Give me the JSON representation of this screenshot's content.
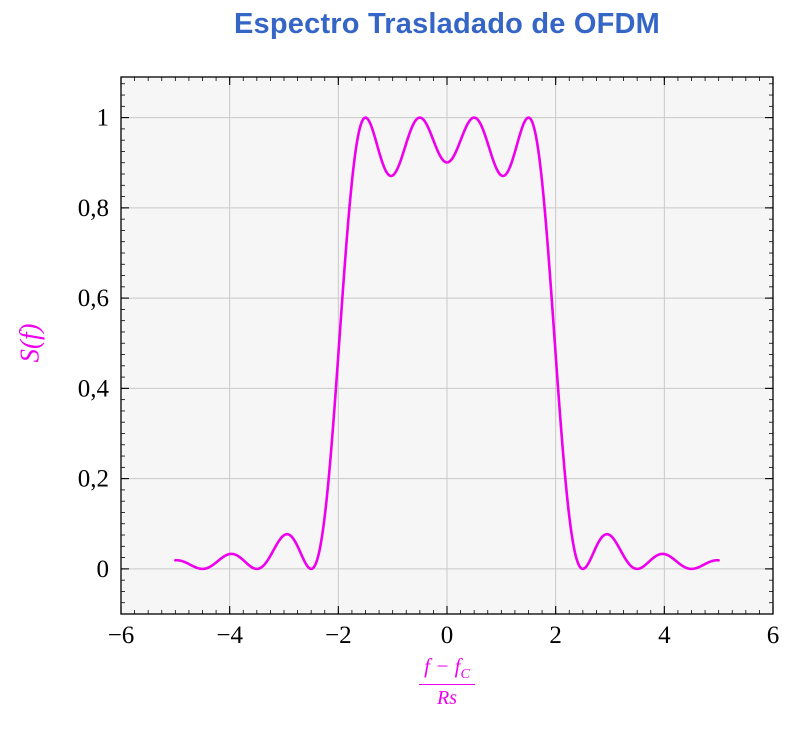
{
  "chart": {
    "title": "Espectro Trasladado de OFDM",
    "title_color": "#3565C6",
    "ylabel": "S(f)",
    "xlabel_parts": {
      "num_main": "f − f",
      "num_sub": "C",
      "den": "Rs"
    },
    "accent_color": "#EE00EE"
  },
  "chart_data": {
    "type": "line",
    "title": "Espectro Trasladado de OFDM",
    "xlabel": "(f − f_C) / Rs",
    "ylabel": "S(f)",
    "xlim": [
      -6,
      6
    ],
    "ylim": [
      -0.1,
      1.09
    ],
    "x_ticks": [
      -6,
      -4,
      -2,
      0,
      2,
      4,
      6
    ],
    "x_tick_labels": [
      "−6",
      "−4",
      "−2",
      "0",
      "2",
      "4",
      "6"
    ],
    "y_ticks": [
      0,
      0.2,
      0.4,
      0.6,
      0.8,
      1
    ],
    "y_tick_labels": [
      "0",
      "0,2",
      "0,4",
      "0,6",
      "0,8",
      "1"
    ],
    "minor_x_step": 0.25,
    "minor_y_step": 0.025,
    "grid": true,
    "grid_color": "#c9c9c9",
    "plot_bg": "#f6f6f6",
    "frame_color": "#000000",
    "series": [
      {
        "name": "S(f)",
        "color": "#EE00EE",
        "line_width": 2.6,
        "model": "S(f) = sum over k of sinc^2(f - k), OFDM power spectrum of 4 subcarriers",
        "subcarriers": [
          -1.5,
          -0.5,
          0.5,
          1.5
        ],
        "f_min": -5,
        "f_max": 5,
        "samples": 801,
        "key_points": {
          "peaks_x": [
            -1.5,
            -0.5,
            0.5,
            1.5
          ],
          "peak_value": 1.0,
          "dip_at_0": 0.9,
          "dips_at_pm1": 0.87,
          "value_at_pm2": 0.47,
          "zeros_x": [
            -4.5,
            -3.5,
            -2.5,
            2.5,
            3.5,
            4.5
          ],
          "sidelobe_at_pm3": 0.075,
          "sidelobe_at_pm4": 0.033,
          "endpoint_value": 0.019
        }
      }
    ]
  }
}
